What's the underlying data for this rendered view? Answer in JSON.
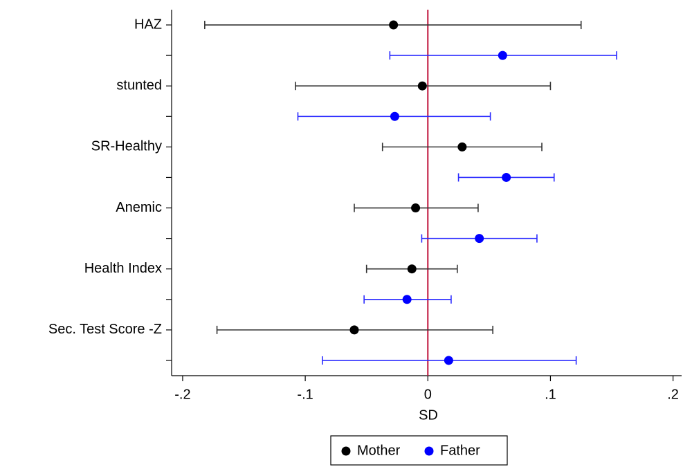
{
  "chart_data": {
    "type": "coefplot",
    "x_label": "SD",
    "categories": [
      "HAZ",
      null,
      "stunted",
      null,
      "SR-Healthy",
      null,
      "Anemic",
      null,
      "Health Index",
      null,
      "Sec. Test Score -Z",
      null
    ],
    "series": [
      {
        "name": "Mother",
        "color": "#000000",
        "bar_color": "#333333",
        "values": [
          -0.028,
          null,
          -0.0045,
          null,
          0.028,
          null,
          -0.01,
          null,
          -0.013,
          null,
          -0.06,
          null
        ],
        "ci_low": [
          -0.182,
          null,
          -0.108,
          null,
          -0.037,
          null,
          -0.06,
          null,
          -0.05,
          null,
          -0.172,
          null
        ],
        "ci_high": [
          0.125,
          null,
          0.1,
          null,
          0.093,
          null,
          0.041,
          null,
          0.024,
          null,
          0.053,
          null
        ]
      },
      {
        "name": "Father",
        "color": "#0000ff",
        "bar_color": "#2a2aff",
        "values": [
          null,
          0.061,
          null,
          -0.027,
          null,
          0.064,
          null,
          0.042,
          null,
          -0.017,
          null,
          0.017
        ],
        "ci_low": [
          null,
          -0.031,
          null,
          -0.106,
          null,
          0.025,
          null,
          -0.005,
          null,
          -0.052,
          null,
          -0.086
        ],
        "ci_high": [
          null,
          0.154,
          null,
          0.051,
          null,
          0.103,
          null,
          0.089,
          null,
          0.019,
          null,
          0.121
        ]
      }
    ],
    "xlim": [
      -0.209,
      0.207
    ],
    "xticks": [
      {
        "value": -0.2,
        "label": "-.2"
      },
      {
        "value": -0.1,
        "label": "-.1"
      },
      0,
      {
        "value": 0.1,
        "label": ".1"
      },
      {
        "value": 0.2,
        "label": ".2"
      }
    ],
    "reference_line": {
      "value": 0,
      "color": "#c0143c"
    },
    "legend_position": "bottom"
  }
}
